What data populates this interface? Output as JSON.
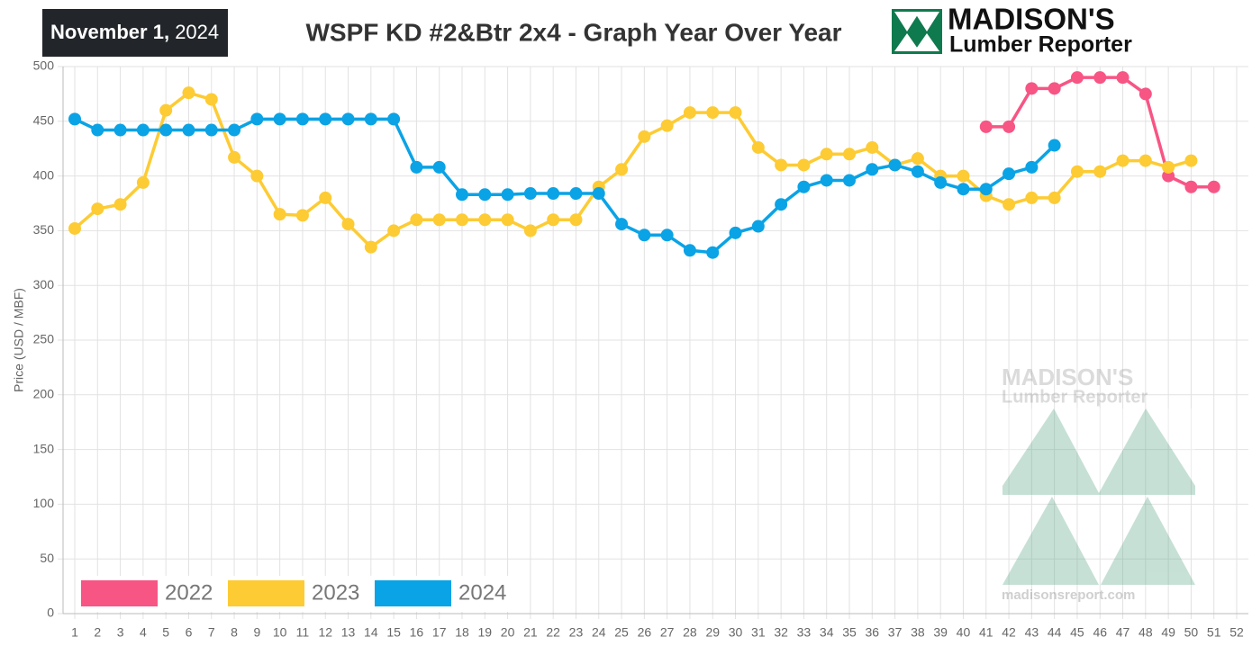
{
  "date_bold": "November 1,",
  "date_year": "2024",
  "logo": {
    "name": "MADISON'S",
    "subtitle": "Lumber Reporter",
    "url": "madisonsreport.com"
  },
  "chart_data": {
    "type": "line",
    "title": "WSPF KD #2&Btr 2x4 - Graph Year Over Year",
    "ylabel": "Price (USD / MBF)",
    "categories": [
      1,
      2,
      3,
      4,
      5,
      6,
      7,
      8,
      9,
      10,
      11,
      12,
      13,
      14,
      15,
      16,
      17,
      18,
      19,
      20,
      21,
      22,
      23,
      24,
      25,
      26,
      27,
      28,
      29,
      30,
      31,
      32,
      33,
      34,
      35,
      36,
      37,
      38,
      39,
      40,
      41,
      42,
      43,
      44,
      45,
      46,
      47,
      48,
      49,
      50,
      51,
      52
    ],
    "ylim": [
      0,
      500
    ],
    "yticks": [
      0,
      50,
      100,
      150,
      200,
      250,
      300,
      350,
      400,
      450,
      500
    ],
    "grid": true,
    "legend": "bottom-left",
    "series": [
      {
        "name": "2022",
        "color": "#f75584",
        "values": [
          null,
          null,
          null,
          null,
          null,
          null,
          null,
          null,
          null,
          null,
          null,
          null,
          null,
          null,
          null,
          null,
          null,
          null,
          null,
          null,
          null,
          null,
          null,
          null,
          null,
          null,
          null,
          null,
          null,
          null,
          null,
          null,
          null,
          null,
          null,
          null,
          null,
          null,
          null,
          null,
          445,
          445,
          480,
          480,
          490,
          490,
          490,
          475,
          400,
          390,
          390,
          null
        ]
      },
      {
        "name": "2023",
        "color": "#fdcb33",
        "values": [
          352,
          370,
          374,
          394,
          460,
          476,
          470,
          417,
          400,
          365,
          364,
          380,
          356,
          335,
          350,
          360,
          360,
          360,
          360,
          360,
          350,
          360,
          360,
          390,
          406,
          436,
          446,
          458,
          458,
          458,
          426,
          410,
          410,
          420,
          420,
          426,
          410,
          416,
          400,
          400,
          382,
          374,
          380,
          380,
          404,
          404,
          414,
          414,
          408,
          414,
          null,
          null
        ]
      },
      {
        "name": "2024",
        "color": "#0aa3e6",
        "values": [
          452,
          442,
          442,
          442,
          442,
          442,
          442,
          442,
          452,
          452,
          452,
          452,
          452,
          452,
          452,
          408,
          408,
          383,
          383,
          383,
          384,
          384,
          384,
          384,
          356,
          346,
          346,
          332,
          330,
          348,
          354,
          374,
          390,
          396,
          396,
          406,
          410,
          404,
          394,
          388,
          388,
          402,
          408,
          428,
          null,
          null,
          null,
          null,
          null,
          null,
          null,
          null
        ]
      }
    ]
  }
}
